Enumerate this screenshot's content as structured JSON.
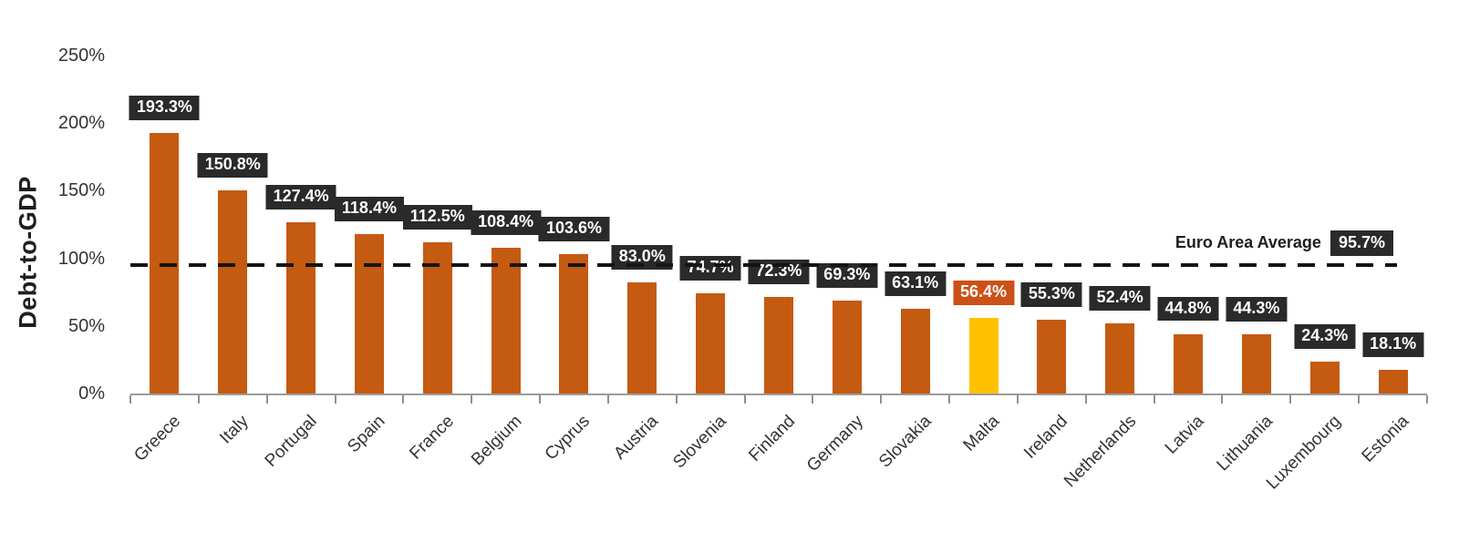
{
  "chart_data": {
    "type": "bar",
    "title": "",
    "ylabel": "Debt-to-GDP",
    "xlabel": "",
    "ylim": [
      0,
      250
    ],
    "ytick_labels": [
      "0%",
      "50%",
      "100%",
      "150%",
      "200%",
      "250%"
    ],
    "ytick_values": [
      0,
      50,
      100,
      150,
      200,
      250
    ],
    "grid": "off",
    "categories": [
      "Greece",
      "Italy",
      "Portugal",
      "Spain",
      "France",
      "Belgium",
      "Cyprus",
      "Austria",
      "Slovenia",
      "Finland",
      "Germany",
      "Slovakia",
      "Malta",
      "Ireland",
      "Netherlands",
      "Latvia",
      "Lithuania",
      "Luxembourg",
      "Estonia"
    ],
    "values": [
      193.3,
      150.8,
      127.4,
      118.4,
      112.5,
      108.4,
      103.6,
      83.0,
      74.7,
      72.3,
      69.3,
      63.1,
      56.4,
      55.3,
      52.4,
      44.8,
      44.3,
      24.3,
      18.1
    ],
    "value_labels": [
      "193.3%",
      "150.8%",
      "127.4%",
      "118.4%",
      "112.5%",
      "108.4%",
      "103.6%",
      "83.0%",
      "74.7%",
      "72.3%",
      "69.3%",
      "63.1%",
      "56.4%",
      "55.3%",
      "52.4%",
      "44.8%",
      "44.3%",
      "24.3%",
      "18.1%"
    ],
    "highlight_category": "Malta",
    "reference_line": {
      "value": 95.7,
      "label": "Euro Area Average",
      "value_label": "95.7%"
    },
    "colors": {
      "bar": "#C55A11",
      "highlight_bar": "#FFC000",
      "value_label_bg": "#2A2A2A",
      "value_label_text": "#FFFFFF",
      "highlight_label_bg": "#CB5118",
      "reference_line": "#141414",
      "axis_line": "#9B9B9B",
      "tick": "#8F8F8F",
      "axis_text": "#333333",
      "title_text": "#1F1F1F"
    }
  }
}
